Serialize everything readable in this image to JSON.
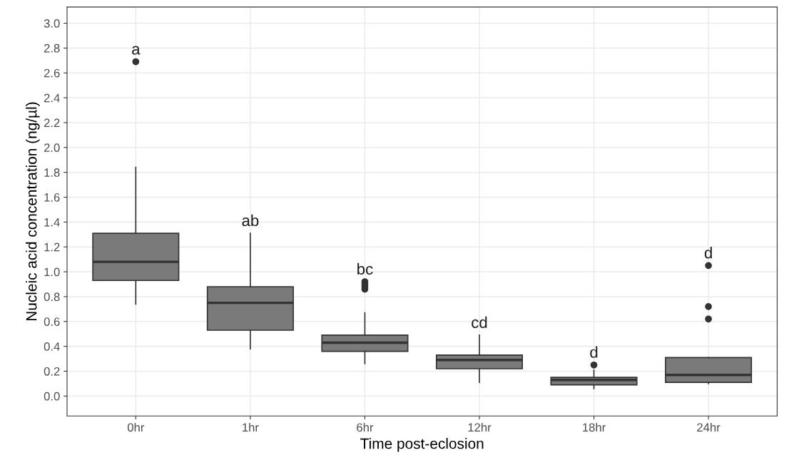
{
  "chart_data": {
    "type": "box",
    "xlabel": "Time post-eclosion",
    "ylabel": "Nucleic acid concentration (ng/µl)",
    "categories": [
      "0hr",
      "1hr",
      "6hr",
      "12hr",
      "18hr",
      "24hr"
    ],
    "color": "#7a7a7a",
    "boxes": [
      {
        "low": 0.74,
        "q1": 0.93,
        "median": 1.08,
        "q3": 1.31,
        "high": 1.84,
        "outliers": [
          2.69
        ]
      },
      {
        "low": 0.38,
        "q1": 0.53,
        "median": 0.75,
        "q3": 0.88,
        "high": 1.31
      },
      {
        "low": 0.26,
        "q1": 0.36,
        "median": 0.43,
        "q3": 0.49,
        "high": 0.67,
        "outliers": [
          0.86,
          0.88,
          0.9,
          0.92
        ]
      },
      {
        "low": 0.11,
        "q1": 0.22,
        "median": 0.29,
        "q3": 0.33,
        "high": 0.49
      },
      {
        "low": 0.06,
        "q1": 0.09,
        "median": 0.13,
        "q3": 0.15,
        "high": 0.21,
        "outliers": [
          0.25
        ]
      },
      {
        "low": 0.1,
        "q1": 0.11,
        "median": 0.17,
        "q3": 0.31,
        "high": 0.31,
        "outliers": [
          0.62,
          0.72,
          1.05
        ]
      }
    ],
    "ylim": [
      -0.16,
      3.13
    ],
    "yticks": [
      {
        "value": 0.0,
        "label": "0.0"
      },
      {
        "value": 0.2,
        "label": "0.2"
      },
      {
        "value": 0.4,
        "label": "0.4"
      },
      {
        "value": 0.6,
        "label": "0.6"
      },
      {
        "value": 0.8,
        "label": "0.8"
      },
      {
        "value": 1.0,
        "label": "1.0"
      },
      {
        "value": 1.2,
        "label": "1.2"
      },
      {
        "value": 1.4,
        "label": "1.4"
      },
      {
        "value": 1.6,
        "label": "1.6"
      },
      {
        "value": 1.8,
        "label": "1.8"
      },
      {
        "value": 2.0,
        "label": "2.0"
      },
      {
        "value": 2.2,
        "label": "2.2"
      },
      {
        "value": 2.4,
        "label": "2.4"
      },
      {
        "value": 2.6,
        "label": "2.6"
      },
      {
        "value": 2.8,
        "label": "2.8"
      },
      {
        "value": 3.0,
        "label": "3.0"
      }
    ],
    "grid": true,
    "annotations": [
      "a",
      "ab",
      "bc",
      "cd",
      "d",
      "d"
    ]
  }
}
